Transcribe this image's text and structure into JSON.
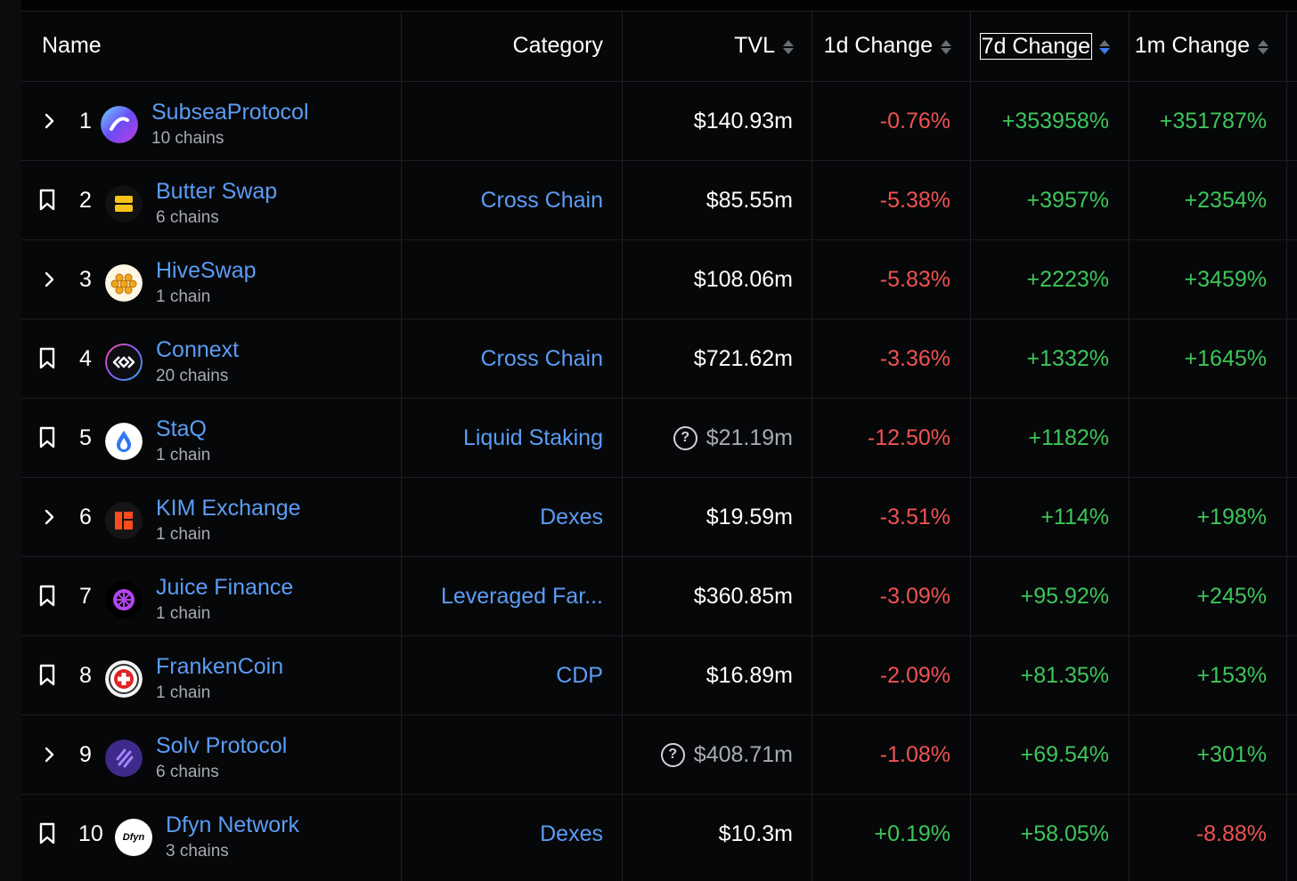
{
  "header": {
    "name": "Name",
    "category": "Category",
    "tvl": "TVL",
    "change_1d": "1d Change",
    "change_7d": "7d Change",
    "change_1m": "1m Change"
  },
  "colors": {
    "link": "#5b9cf5",
    "positive": "#3ec55a",
    "negative": "#f05252",
    "active_sort": "#3f7bf0"
  },
  "rows": [
    {
      "rank": "1",
      "control": "expand",
      "name": "SubseaProtocol",
      "chains": "10 chains",
      "category": "",
      "tvl": "$140.93m",
      "tvl_unknown": false,
      "d1": "-0.76%",
      "d7": "+353958%",
      "m1": "+351787%",
      "logo": "subsea-logo"
    },
    {
      "rank": "2",
      "control": "bookmark",
      "name": "Butter Swap",
      "chains": "6 chains",
      "category": "Cross Chain",
      "tvl": "$85.55m",
      "tvl_unknown": false,
      "d1": "-5.38%",
      "d7": "+3957%",
      "m1": "+2354%",
      "logo": "butter-swap-logo"
    },
    {
      "rank": "3",
      "control": "expand",
      "name": "HiveSwap",
      "chains": "1 chain",
      "category": "",
      "tvl": "$108.06m",
      "tvl_unknown": false,
      "d1": "-5.83%",
      "d7": "+2223%",
      "m1": "+3459%",
      "logo": "hiveswap-logo"
    },
    {
      "rank": "4",
      "control": "bookmark",
      "name": "Connext",
      "chains": "20 chains",
      "category": "Cross Chain",
      "tvl": "$721.62m",
      "tvl_unknown": false,
      "d1": "-3.36%",
      "d7": "+1332%",
      "m1": "+1645%",
      "logo": "connext-logo"
    },
    {
      "rank": "5",
      "control": "bookmark",
      "name": "StaQ",
      "chains": "1 chain",
      "category": "Liquid Staking",
      "tvl": "$21.19m",
      "tvl_unknown": true,
      "d1": "-12.50%",
      "d7": "+1182%",
      "m1": "",
      "logo": "staq-logo"
    },
    {
      "rank": "6",
      "control": "expand",
      "name": "KIM Exchange",
      "chains": "1 chain",
      "category": "Dexes",
      "tvl": "$19.59m",
      "tvl_unknown": false,
      "d1": "-3.51%",
      "d7": "+114%",
      "m1": "+198%",
      "logo": "kim-exchange-logo"
    },
    {
      "rank": "7",
      "control": "bookmark",
      "name": "Juice Finance",
      "chains": "1 chain",
      "category": "Leveraged Far...",
      "tvl": "$360.85m",
      "tvl_unknown": false,
      "d1": "-3.09%",
      "d7": "+95.92%",
      "m1": "+245%",
      "logo": "juice-finance-logo"
    },
    {
      "rank": "8",
      "control": "bookmark",
      "name": "FrankenCoin",
      "chains": "1 chain",
      "category": "CDP",
      "tvl": "$16.89m",
      "tvl_unknown": false,
      "d1": "-2.09%",
      "d7": "+81.35%",
      "m1": "+153%",
      "logo": "frankencoin-logo"
    },
    {
      "rank": "9",
      "control": "expand",
      "name": "Solv Protocol",
      "chains": "6 chains",
      "category": "",
      "tvl": "$408.71m",
      "tvl_unknown": true,
      "d1": "-1.08%",
      "d7": "+69.54%",
      "m1": "+301%",
      "logo": "solv-protocol-logo"
    },
    {
      "rank": "10",
      "control": "bookmark",
      "name": "Dfyn Network",
      "chains": "3 chains",
      "category": "Dexes",
      "tvl": "$10.3m",
      "tvl_unknown": false,
      "d1": "+0.19%",
      "d7": "+58.05%",
      "m1": "-8.88%",
      "logo": "dfyn-logo",
      "logo_text": "Dfyn"
    }
  ]
}
